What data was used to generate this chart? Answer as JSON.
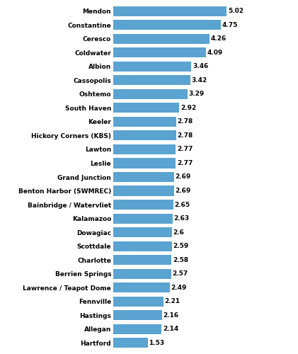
{
  "categories": [
    "Hartford",
    "Allegan",
    "Hastings",
    "Fennville",
    "Lawrence / Teapot Dome",
    "Berrien Springs",
    "Charlotte",
    "Scottdale",
    "Dowagiac",
    "Kalamazoo",
    "Bainbridge / Watervliet",
    "Benton Harbor (SWMREC)",
    "Grand Junction",
    "Leslie",
    "Lawton",
    "Hickory Corners (KBS)",
    "Keeler",
    "South Haven",
    "Oshtemo",
    "Cassopolis",
    "Albion",
    "Coldwater",
    "Ceresco",
    "Constantine",
    "Mendon"
  ],
  "values": [
    1.53,
    2.14,
    2.16,
    2.21,
    2.49,
    2.57,
    2.58,
    2.59,
    2.6,
    2.63,
    2.65,
    2.69,
    2.69,
    2.77,
    2.77,
    2.78,
    2.78,
    2.92,
    3.29,
    3.42,
    3.46,
    4.09,
    4.26,
    4.75,
    5.02
  ],
  "bar_color": "#5BA3D0",
  "text_color": "#000000",
  "background_color": "#ffffff",
  "xlim": [
    0,
    5.8
  ],
  "bar_height": 0.72,
  "value_fontsize": 6.5,
  "label_fontsize": 6.5,
  "figwidth": 4.21,
  "figheight": 5.0,
  "dpi": 100
}
